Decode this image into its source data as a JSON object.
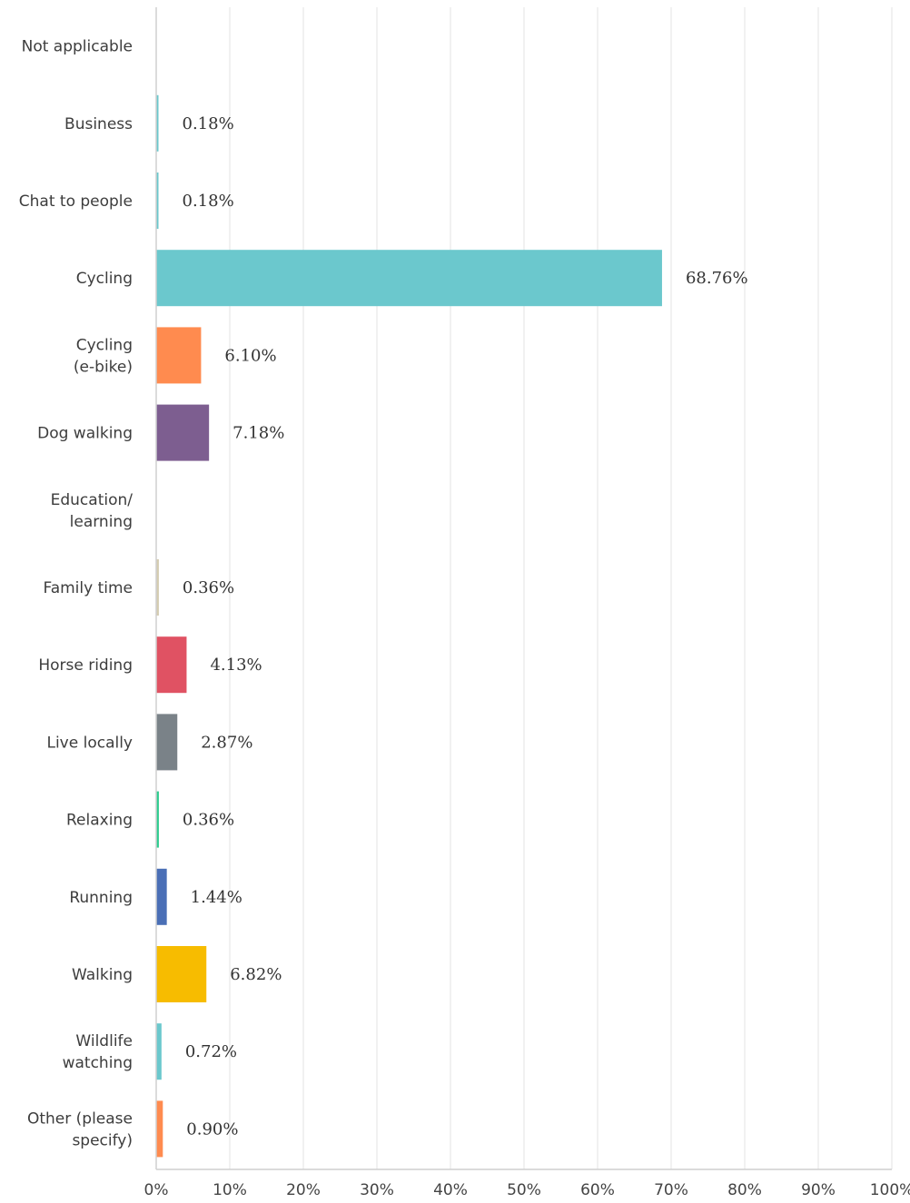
{
  "chart_data": {
    "type": "bar",
    "orientation": "horizontal",
    "title": "",
    "xlabel": "",
    "ylabel": "",
    "xlim": [
      0,
      100
    ],
    "x_ticks": [
      "0%",
      "10%",
      "20%",
      "30%",
      "40%",
      "50%",
      "60%",
      "70%",
      "80%",
      "90%",
      "100%"
    ],
    "grid": true,
    "legend": "none",
    "bars": [
      {
        "category": [
          "Not applicable"
        ],
        "value": 0,
        "label": "",
        "color": "#6bc8cd"
      },
      {
        "category": [
          "Business"
        ],
        "value": 0.18,
        "label": "0.18%",
        "color": "#6bc8cd"
      },
      {
        "category": [
          "Chat to people"
        ],
        "value": 0.18,
        "label": "0.18%",
        "color": "#6bc8cd"
      },
      {
        "category": [
          "Cycling"
        ],
        "value": 68.76,
        "label": "68.76%",
        "color": "#6bc8cd"
      },
      {
        "category": [
          "Cycling",
          "(e-bike)"
        ],
        "value": 6.1,
        "label": "6.10%",
        "color": "#ff8b4f"
      },
      {
        "category": [
          "Dog walking"
        ],
        "value": 7.18,
        "label": "7.18%",
        "color": "#7d5e90"
      },
      {
        "category": [
          "Education/",
          "learning"
        ],
        "value": 0,
        "label": "",
        "color": "#d5ccb1"
      },
      {
        "category": [
          "Family time"
        ],
        "value": 0.36,
        "label": "0.36%",
        "color": "#d5ccb1"
      },
      {
        "category": [
          "Horse riding"
        ],
        "value": 4.13,
        "label": "4.13%",
        "color": "#e05263"
      },
      {
        "category": [
          "Live locally"
        ],
        "value": 2.87,
        "label": "2.87%",
        "color": "#7a8288"
      },
      {
        "category": [
          "Relaxing"
        ],
        "value": 0.36,
        "label": "0.36%",
        "color": "#2dcc8f"
      },
      {
        "category": [
          "Running"
        ],
        "value": 1.44,
        "label": "1.44%",
        "color": "#4a6fb6"
      },
      {
        "category": [
          "Walking"
        ],
        "value": 6.82,
        "label": "6.82%",
        "color": "#f7bc00"
      },
      {
        "category": [
          "Wildlife",
          "watching"
        ],
        "value": 0.72,
        "label": "0.72%",
        "color": "#6bc8cd"
      },
      {
        "category": [
          "Other (please",
          "specify)"
        ],
        "value": 0.9,
        "label": "0.90%",
        "color": "#ff8b4f"
      }
    ]
  }
}
